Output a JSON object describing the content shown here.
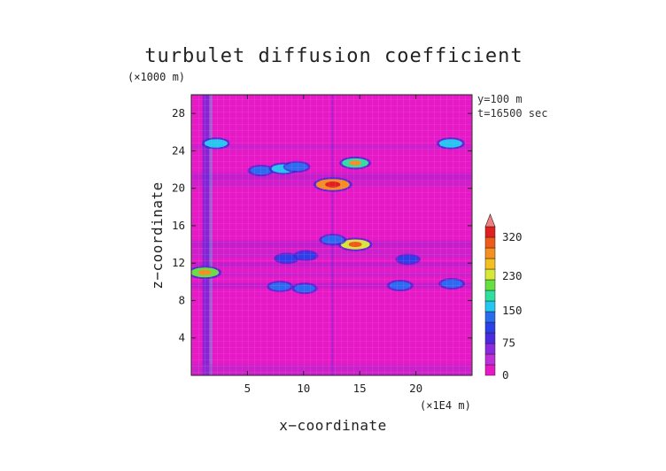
{
  "chart_data": {
    "type": "heatmap",
    "title": "turbulet diffusion coefficient",
    "xlabel": "x−coordinate",
    "ylabel": "z−coordinate",
    "x_unit": "(×1E4 m)",
    "y_unit": "(×1000 m)",
    "annotations": [
      "y=100  m",
      "t=16500 sec"
    ],
    "xlim": [
      0,
      25
    ],
    "ylim": [
      0,
      30
    ],
    "x_ticks": [
      5,
      10,
      15,
      20
    ],
    "y_ticks": [
      4,
      8,
      12,
      16,
      20,
      24,
      28
    ],
    "background_value": 0,
    "colorbar": {
      "levels": [
        0,
        75,
        150,
        230,
        320
      ],
      "max_arrow": true,
      "colors": [
        "#e619c6",
        "#c030d8",
        "#8a2be2",
        "#4b2be0",
        "#2b40e8",
        "#2a6cf0",
        "#22c8f0",
        "#2ee0a0",
        "#66e040",
        "#d8e838",
        "#f4c020",
        "#f59020",
        "#f05a18",
        "#e02020",
        "#f08080"
      ]
    },
    "features": [
      {
        "x": 2.2,
        "z": 24.8,
        "value": 140
      },
      {
        "x": 23.1,
        "z": 24.8,
        "value": 140
      },
      {
        "x": 6.2,
        "z": 21.9,
        "value": 120
      },
      {
        "x": 8.2,
        "z": 22.1,
        "value": 150
      },
      {
        "x": 9.4,
        "z": 22.3,
        "value": 130
      },
      {
        "x": 14.6,
        "z": 22.7,
        "value": 180
      },
      {
        "x": 12.6,
        "z": 20.4,
        "value": 260
      },
      {
        "x": 14.6,
        "z": 14.0,
        "value": 210
      },
      {
        "x": 12.6,
        "z": 14.5,
        "value": 130
      },
      {
        "x": 8.5,
        "z": 12.5,
        "value": 110
      },
      {
        "x": 10.2,
        "z": 12.8,
        "value": 100
      },
      {
        "x": 19.3,
        "z": 12.4,
        "value": 105
      },
      {
        "x": 1.2,
        "z": 11.0,
        "value": 200
      },
      {
        "x": 7.9,
        "z": 9.5,
        "value": 120
      },
      {
        "x": 10.1,
        "z": 9.3,
        "value": 115
      },
      {
        "x": 18.6,
        "z": 9.6,
        "value": 120
      },
      {
        "x": 23.2,
        "z": 9.8,
        "value": 120
      }
    ]
  }
}
